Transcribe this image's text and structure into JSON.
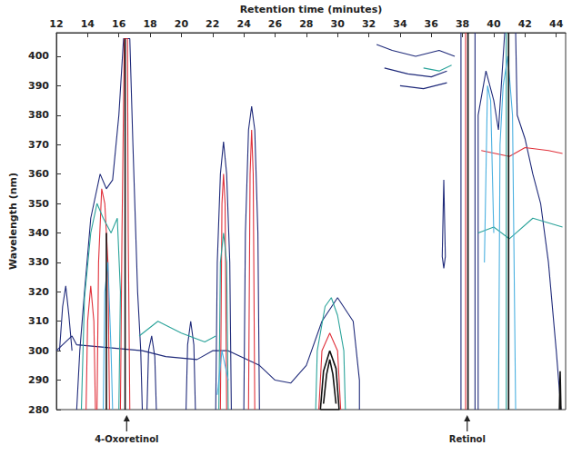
{
  "chart_data": {
    "type": "contour",
    "x_label": "Retention time (minutes)",
    "y_label": "Wavelength (nm)",
    "xlim": [
      12,
      44.6
    ],
    "ylim": [
      280,
      408
    ],
    "xticks": [
      12,
      14,
      16,
      18,
      20,
      22,
      24,
      26,
      28,
      30,
      32,
      34,
      36,
      38,
      40,
      42,
      44
    ],
    "yticks": [
      280,
      290,
      300,
      310,
      320,
      330,
      340,
      350,
      360,
      370,
      380,
      390,
      400
    ],
    "grid": false,
    "contours": [
      {
        "color": "#1f2a7a",
        "points": [
          [
            13.3,
            280
          ],
          [
            13.5,
            300
          ],
          [
            13.8,
            320
          ],
          [
            14.2,
            345
          ],
          [
            14.8,
            360
          ],
          [
            15.2,
            355
          ],
          [
            15.6,
            358
          ],
          [
            16.0,
            380
          ],
          [
            16.3,
            406
          ],
          [
            16.7,
            406
          ],
          [
            16.9,
            370
          ],
          [
            17.2,
            320
          ],
          [
            17.4,
            300
          ],
          [
            17.5,
            280
          ]
        ]
      },
      {
        "color": "#1f2a7a",
        "points": [
          [
            12,
            300
          ],
          [
            13,
            305
          ],
          [
            13.3,
            302
          ],
          [
            17.5,
            300
          ],
          [
            19,
            298
          ],
          [
            21,
            297
          ],
          [
            22,
            300
          ],
          [
            23,
            300
          ],
          [
            25,
            295
          ],
          [
            26,
            290
          ],
          [
            27,
            289
          ],
          [
            28,
            295
          ],
          [
            29,
            310
          ],
          [
            30,
            318
          ],
          [
            31,
            310
          ],
          [
            31.4,
            290
          ],
          [
            31.4,
            280
          ]
        ]
      },
      {
        "color": "#1f2a7a",
        "points": [
          [
            22.2,
            280
          ],
          [
            22.3,
            330
          ],
          [
            22.5,
            360
          ],
          [
            22.7,
            371
          ],
          [
            22.9,
            360
          ],
          [
            23.1,
            330
          ],
          [
            23.2,
            280
          ]
        ]
      },
      {
        "color": "#1f2a7a",
        "points": [
          [
            24.0,
            280
          ],
          [
            24.1,
            340
          ],
          [
            24.3,
            375
          ],
          [
            24.5,
            383
          ],
          [
            24.7,
            375
          ],
          [
            24.9,
            340
          ],
          [
            25.0,
            280
          ]
        ]
      },
      {
        "color": "#1f2a7a",
        "points": [
          [
            36.7,
            332
          ],
          [
            36.75,
            345
          ],
          [
            36.8,
            358
          ],
          [
            36.85,
            345
          ],
          [
            36.9,
            332
          ],
          [
            36.8,
            328
          ],
          [
            36.7,
            332
          ]
        ]
      },
      {
        "color": "#1f2a7a",
        "points": [
          [
            37.9,
            280
          ],
          [
            37.9,
            408
          ]
        ]
      },
      {
        "color": "#1f2a7a",
        "points": [
          [
            38.8,
            408
          ],
          [
            38.8,
            280
          ]
        ]
      },
      {
        "color": "#1f2a7a",
        "points": [
          [
            39.0,
            280
          ],
          [
            39.0,
            380
          ],
          [
            39.5,
            395
          ],
          [
            40.0,
            385
          ],
          [
            40.3,
            375
          ],
          [
            40.7,
            408
          ]
        ]
      },
      {
        "color": "#1f2a7a",
        "points": [
          [
            41.4,
            408
          ],
          [
            41.5,
            380
          ],
          [
            42.0,
            372
          ],
          [
            42.5,
            360
          ],
          [
            43.0,
            350
          ],
          [
            43.5,
            330
          ],
          [
            44.0,
            300
          ],
          [
            44.3,
            280
          ]
        ]
      },
      {
        "color": "#1f2a7a",
        "points": [
          [
            32.5,
            404
          ],
          [
            33.5,
            402
          ],
          [
            35.0,
            400
          ],
          [
            36.5,
            402
          ],
          [
            37.5,
            400
          ]
        ]
      },
      {
        "color": "#1f2a7a",
        "points": [
          [
            33.0,
            396
          ],
          [
            34.5,
            394
          ],
          [
            36.0,
            393
          ],
          [
            37.0,
            395
          ]
        ]
      },
      {
        "color": "#1f2a7a",
        "points": [
          [
            34.0,
            390
          ],
          [
            35.5,
            389
          ],
          [
            37.0,
            391
          ]
        ]
      },
      {
        "color": "#1f2a7a",
        "points": [
          [
            17.8,
            280
          ],
          [
            17.9,
            300
          ],
          [
            18.1,
            305
          ],
          [
            18.3,
            298
          ],
          [
            18.4,
            280
          ]
        ]
      },
      {
        "color": "#1f2a7a",
        "points": [
          [
            20.3,
            280
          ],
          [
            20.4,
            302
          ],
          [
            20.6,
            310
          ],
          [
            20.8,
            302
          ],
          [
            20.9,
            280
          ]
        ]
      },
      {
        "color": "#1f2a7a",
        "points": [
          [
            12.2,
            300
          ],
          [
            12.4,
            315
          ],
          [
            12.6,
            322
          ],
          [
            12.8,
            312
          ],
          [
            13.0,
            300
          ]
        ]
      },
      {
        "color": "#e0303a",
        "points": [
          [
            14.6,
            280
          ],
          [
            14.7,
            330
          ],
          [
            14.9,
            355
          ],
          [
            15.1,
            350
          ],
          [
            15.3,
            330
          ],
          [
            15.4,
            280
          ]
        ]
      },
      {
        "color": "#e0303a",
        "points": [
          [
            16.1,
            280
          ],
          [
            16.2,
            340
          ],
          [
            16.35,
            406
          ],
          [
            16.55,
            406
          ],
          [
            16.6,
            340
          ],
          [
            16.7,
            280
          ]
        ]
      },
      {
        "color": "#e0303a",
        "points": [
          [
            22.5,
            280
          ],
          [
            22.6,
            350
          ],
          [
            22.7,
            360
          ],
          [
            22.8,
            350
          ],
          [
            22.9,
            280
          ]
        ]
      },
      {
        "color": "#e0303a",
        "points": [
          [
            24.3,
            280
          ],
          [
            24.4,
            360
          ],
          [
            24.5,
            375
          ],
          [
            24.6,
            360
          ],
          [
            24.7,
            280
          ]
        ]
      },
      {
        "color": "#e0303a",
        "points": [
          [
            28.8,
            280
          ],
          [
            29.0,
            300
          ],
          [
            29.5,
            306
          ],
          [
            30.0,
            300
          ],
          [
            30.2,
            280
          ]
        ]
      },
      {
        "color": "#e0303a",
        "points": [
          [
            39.2,
            368
          ],
          [
            41.0,
            366
          ],
          [
            42.0,
            369
          ],
          [
            43.5,
            368
          ],
          [
            44.4,
            367
          ]
        ]
      },
      {
        "color": "#e0303a",
        "points": [
          [
            38.2,
            280
          ],
          [
            38.2,
            408
          ]
        ]
      },
      {
        "color": "#e0303a",
        "points": [
          [
            13.9,
            280
          ],
          [
            14.0,
            310
          ],
          [
            14.2,
            322
          ],
          [
            14.4,
            310
          ],
          [
            14.5,
            280
          ]
        ]
      },
      {
        "color": "#2aa39a",
        "points": [
          [
            13.6,
            280
          ],
          [
            13.8,
            318
          ],
          [
            14.2,
            340
          ],
          [
            14.6,
            350
          ],
          [
            15.0,
            345
          ],
          [
            15.5,
            340
          ],
          [
            15.9,
            345
          ],
          [
            16.1,
            320
          ],
          [
            16.0,
            280
          ]
        ]
      },
      {
        "color": "#2aa39a",
        "points": [
          [
            17.3,
            305
          ],
          [
            18.5,
            310
          ],
          [
            20.0,
            306
          ],
          [
            21.5,
            303
          ],
          [
            22.2,
            305
          ]
        ]
      },
      {
        "color": "#2aa39a",
        "points": [
          [
            28.6,
            280
          ],
          [
            28.7,
            300
          ],
          [
            29.2,
            315
          ],
          [
            29.6,
            318
          ],
          [
            30.0,
            312
          ],
          [
            30.4,
            300
          ],
          [
            30.5,
            280
          ]
        ]
      },
      {
        "color": "#2aa39a",
        "points": [
          [
            40.8,
            280
          ],
          [
            40.8,
            408
          ]
        ]
      },
      {
        "color": "#2aa39a",
        "points": [
          [
            39.0,
            340
          ],
          [
            40.0,
            342
          ],
          [
            41.0,
            338
          ],
          [
            42.5,
            345
          ],
          [
            44.4,
            342
          ]
        ]
      },
      {
        "color": "#2aa39a",
        "points": [
          [
            35.5,
            396
          ],
          [
            36.5,
            395
          ],
          [
            37.3,
            397
          ]
        ]
      },
      {
        "color": "#2aa39a",
        "points": [
          [
            22.4,
            280
          ],
          [
            22.5,
            330
          ],
          [
            22.7,
            340
          ],
          [
            22.9,
            330
          ],
          [
            23.0,
            280
          ]
        ]
      },
      {
        "color": "#4ab0e0",
        "points": [
          [
            40.3,
            280
          ],
          [
            40.4,
            370
          ],
          [
            40.6,
            390
          ],
          [
            40.9,
            400
          ],
          [
            41.2,
            380
          ],
          [
            41.4,
            280
          ]
        ]
      },
      {
        "color": "#4ab0e0",
        "points": [
          [
            39.4,
            330
          ],
          [
            39.6,
            390
          ],
          [
            39.8,
            385
          ],
          [
            40.0,
            340
          ]
        ]
      },
      {
        "color": "#4ab0e0",
        "points": [
          [
            22.3,
            285
          ],
          [
            22.6,
            300
          ],
          [
            23.0,
            290
          ]
        ]
      },
      {
        "color": "#4ab0e0",
        "points": [
          [
            15.0,
            280
          ],
          [
            15.1,
            320
          ],
          [
            15.3,
            330
          ],
          [
            15.5,
            300
          ],
          [
            15.6,
            280
          ]
        ]
      },
      {
        "color": "#111111",
        "points": [
          [
            28.9,
            280
          ],
          [
            29.1,
            293
          ],
          [
            29.5,
            300
          ],
          [
            29.9,
            294
          ],
          [
            30.1,
            280
          ],
          [
            28.9,
            280
          ]
        ]
      },
      {
        "color": "#111111",
        "points": [
          [
            29.1,
            282
          ],
          [
            29.3,
            292
          ],
          [
            29.5,
            297
          ],
          [
            29.7,
            292
          ],
          [
            29.9,
            282
          ]
        ]
      },
      {
        "color": "#111111",
        "points": [
          [
            16.4,
            280
          ],
          [
            16.4,
            406
          ]
        ]
      },
      {
        "color": "#111111",
        "points": [
          [
            15.2,
            280
          ],
          [
            15.2,
            340
          ]
        ]
      },
      {
        "color": "#111111",
        "points": [
          [
            38.35,
            280
          ],
          [
            38.35,
            408
          ]
        ]
      },
      {
        "color": "#111111",
        "points": [
          [
            40.95,
            280
          ],
          [
            40.95,
            408
          ]
        ]
      },
      {
        "color": "#111111",
        "points": [
          [
            44.2,
            280
          ],
          [
            44.25,
            293
          ],
          [
            44.3,
            280
          ]
        ]
      }
    ],
    "annotations": [
      {
        "text": "4-Oxoretinol",
        "x": 16.5
      },
      {
        "text": "Retinol",
        "x": 38.3
      }
    ]
  }
}
